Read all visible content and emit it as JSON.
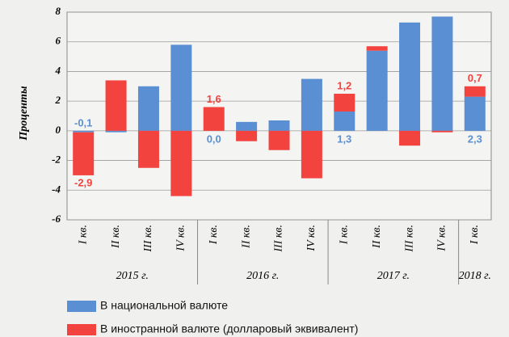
{
  "chart_data": {
    "type": "stacked-bar",
    "ylabel": "Проценты",
    "groups": [
      {
        "name": "2015 г.",
        "categories": [
          "I кв.",
          "II кв.",
          "III кв.",
          "IV кв."
        ]
      },
      {
        "name": "2016 г.",
        "categories": [
          "I кв.",
          "II кв.",
          "III кв.",
          "IV кв."
        ]
      },
      {
        "name": "2017 г.",
        "categories": [
          "I кв.",
          "II кв.",
          "III кв.",
          "IV кв."
        ]
      },
      {
        "name": "2018 г.",
        "categories": [
          "I кв."
        ]
      }
    ],
    "series": [
      {
        "name": "В национальной валюте",
        "color": "#5b8fd4",
        "values": [
          -0.1,
          -0.1,
          3.0,
          5.8,
          0.0,
          0.6,
          0.7,
          3.5,
          1.3,
          5.4,
          7.3,
          7.7,
          2.3
        ],
        "value_labels": [
          "-0,1",
          null,
          null,
          null,
          "0,0",
          null,
          null,
          null,
          "1,3",
          null,
          null,
          null,
          "2,3"
        ]
      },
      {
        "name": "В иностранной валюте (долларовый эквивалент)",
        "color": "#f2433f",
        "values": [
          -2.9,
          3.4,
          -2.5,
          -4.4,
          1.6,
          -0.7,
          -1.3,
          -3.2,
          1.2,
          0.3,
          -1.0,
          -0.1,
          0.7
        ],
        "value_labels": [
          "-2,9",
          null,
          null,
          null,
          "1,6",
          null,
          null,
          null,
          "1,2",
          null,
          null,
          null,
          "0,7"
        ]
      }
    ],
    "ylim": [
      -6,
      8
    ],
    "yticks": [
      -6,
      -4,
      -2,
      0,
      2,
      4,
      6,
      8
    ],
    "grid": true
  }
}
